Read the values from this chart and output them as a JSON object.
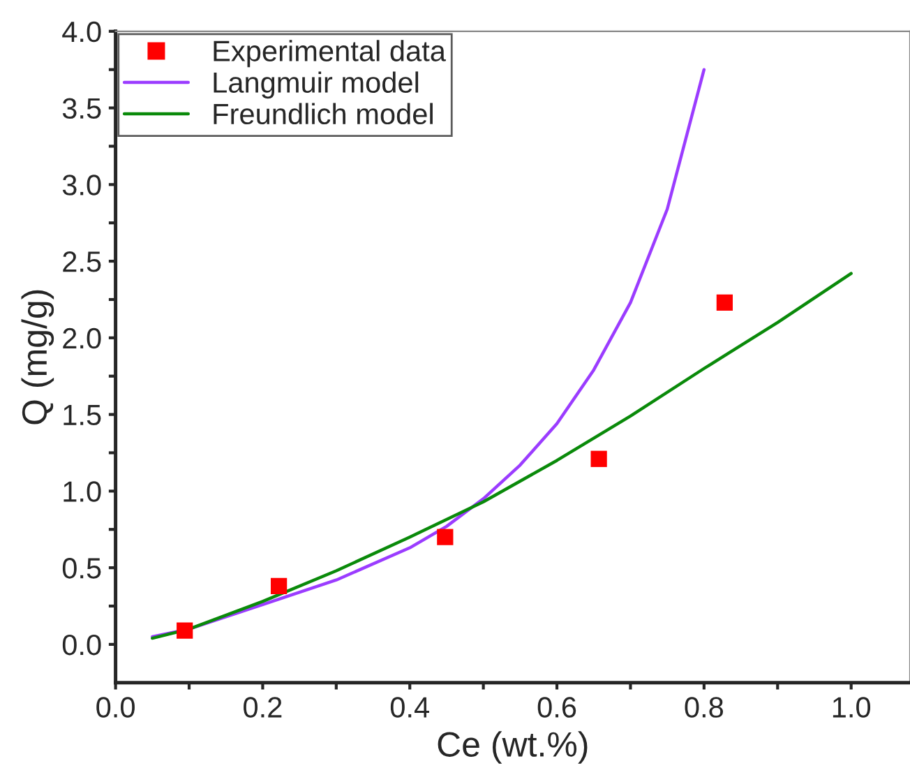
{
  "chart_data": {
    "type": "scatter",
    "xlabel": "Ce (wt.%)",
    "ylabel": "Q (mg/g)",
    "xlim": [
      0,
      1.08
    ],
    "ylim": [
      -0.25,
      4.0
    ],
    "xticks": [
      {
        "value": 0.0,
        "label": "0.0"
      },
      {
        "value": 0.1,
        "label": null
      },
      {
        "value": 0.2,
        "label": "0.2"
      },
      {
        "value": 0.3,
        "label": null
      },
      {
        "value": 0.4,
        "label": "0.4"
      },
      {
        "value": 0.5,
        "label": null
      },
      {
        "value": 0.6,
        "label": "0.6"
      },
      {
        "value": 0.7,
        "label": null
      },
      {
        "value": 0.8,
        "label": "0.8"
      },
      {
        "value": 0.9,
        "label": null
      },
      {
        "value": 1.0,
        "label": "1.0"
      }
    ],
    "yticks": [
      {
        "value": 0.0,
        "label": "0.0"
      },
      {
        "value": 0.25,
        "label": null
      },
      {
        "value": 0.5,
        "label": "0.5"
      },
      {
        "value": 0.75,
        "label": null
      },
      {
        "value": 1.0,
        "label": "1.0"
      },
      {
        "value": 1.25,
        "label": null
      },
      {
        "value": 1.5,
        "label": "1.5"
      },
      {
        "value": 1.75,
        "label": null
      },
      {
        "value": 2.0,
        "label": "2.0"
      },
      {
        "value": 2.25,
        "label": null
      },
      {
        "value": 2.5,
        "label": "2.5"
      },
      {
        "value": 2.75,
        "label": null
      },
      {
        "value": 3.0,
        "label": "3.0"
      },
      {
        "value": 3.25,
        "label": null
      },
      {
        "value": 3.5,
        "label": "3.5"
      },
      {
        "value": 3.75,
        "label": null
      },
      {
        "value": 4.0,
        "label": "4.0"
      }
    ],
    "legend": "top left",
    "grid": false,
    "series": [
      {
        "name": "Experimental data",
        "marker": "square",
        "color": "#ff0000",
        "x": [
          0.094,
          0.222,
          0.448,
          0.657,
          0.828
        ],
        "values": [
          0.09,
          0.38,
          0.7,
          1.21,
          2.23
        ]
      },
      {
        "name": "Langmuir model",
        "type": "line",
        "marker": "none",
        "color": "#9b3cff",
        "x": [
          0.05,
          0.1,
          0.2,
          0.3,
          0.4,
          0.45,
          0.5,
          0.55,
          0.6,
          0.65,
          0.7,
          0.75,
          0.8
        ],
        "values": [
          0.05,
          0.1,
          0.26,
          0.42,
          0.63,
          0.77,
          0.95,
          1.17,
          1.44,
          1.79,
          2.23,
          2.84,
          3.75
        ]
      },
      {
        "name": "Freundlich model",
        "type": "line",
        "marker": "none",
        "color": "#0a8a0a",
        "x": [
          0.05,
          0.1,
          0.2,
          0.3,
          0.4,
          0.5,
          0.6,
          0.7,
          0.8,
          0.9,
          1.0
        ],
        "values": [
          0.04,
          0.1,
          0.28,
          0.48,
          0.7,
          0.93,
          1.2,
          1.49,
          1.8,
          2.1,
          2.42
        ]
      }
    ]
  }
}
